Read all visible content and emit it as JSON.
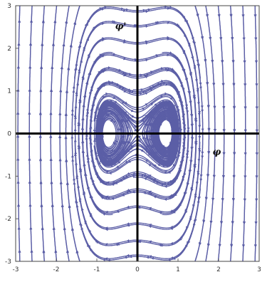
{
  "chart_data": {
    "type": "streamplot",
    "xlim": [
      -3,
      3
    ],
    "ylim": [
      -3,
      3
    ],
    "x_ticks": [
      "-3",
      "-2",
      "-1",
      "0",
      "1",
      "2",
      "3"
    ],
    "y_ticks": [
      "3",
      "2",
      "1",
      "0",
      "-1",
      "-2",
      "-3"
    ],
    "x_tick_values": [
      -3,
      -2,
      -1,
      0,
      1,
      2,
      3
    ],
    "y_tick_values": [
      3,
      2,
      1,
      0,
      -1,
      -2,
      -3
    ],
    "axis_label_x": "φ",
    "axis_label_y": "φ'",
    "equilibria": [
      {
        "x": -0.7,
        "y": 0,
        "kind": "center"
      },
      {
        "x": 0,
        "y": 0,
        "kind": "saddle"
      },
      {
        "x": 0.7,
        "y": 0,
        "kind": "center"
      }
    ],
    "grid": false,
    "frame": true
  },
  "colors": {
    "stream": "#5b5ea6",
    "axis": "#000000",
    "frame": "#444444",
    "background": "#ffffff"
  }
}
